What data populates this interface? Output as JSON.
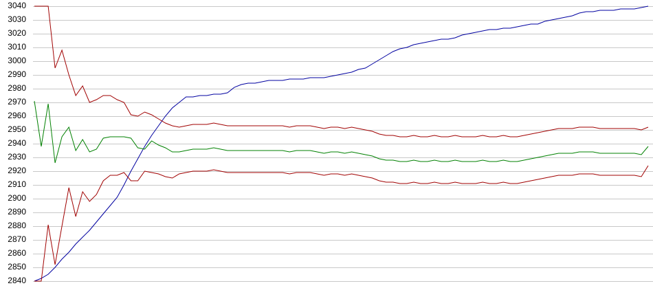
{
  "chart_data": {
    "type": "line",
    "categories": [
      null,
      null,
      null,
      null,
      null,
      null,
      null,
      null,
      null,
      null,
      null,
      null,
      null,
      null,
      null,
      null,
      null,
      null,
      null,
      null,
      null,
      null,
      null,
      null,
      null,
      null,
      null,
      null,
      null,
      null,
      null,
      null,
      null,
      null,
      null,
      null,
      null,
      null,
      null,
      null,
      null,
      null,
      null,
      null,
      null,
      null,
      null,
      null,
      null,
      null,
      null,
      null,
      null,
      null,
      null,
      null,
      null,
      null,
      null,
      null,
      null,
      null,
      null,
      null,
      null,
      null,
      null,
      null,
      null,
      null,
      null,
      null,
      null,
      null,
      null,
      null,
      null,
      null,
      null,
      null,
      null,
      null,
      null,
      null,
      null,
      null,
      null,
      null,
      null,
      null
    ],
    "ylim": [
      2840,
      3040
    ],
    "yticks": [
      2840,
      2850,
      2860,
      2870,
      2880,
      2890,
      2900,
      2910,
      2920,
      2930,
      2940,
      2950,
      2960,
      2970,
      2980,
      2990,
      3000,
      3010,
      3020,
      3030,
      3040
    ],
    "grid": true,
    "series": [
      {
        "color": "#0000a0",
        "values": [
          2840,
          2842,
          2845,
          2850,
          2856,
          2861,
          2867,
          2872,
          2877,
          2883,
          2889,
          2895,
          2901,
          2910,
          2920,
          2929,
          2938,
          2946,
          2953,
          2960,
          2966,
          2970,
          2974,
          2974,
          2975,
          2975,
          2976,
          2976,
          2977,
          2981,
          2983,
          2984,
          2984,
          2985,
          2986,
          2986,
          2986,
          2987,
          2987,
          2987,
          2988,
          2988,
          2988,
          2989,
          2990,
          2991,
          2992,
          2994,
          2995,
          2998,
          3001,
          3004,
          3007,
          3009,
          3010,
          3012,
          3013,
          3014,
          3015,
          3016,
          3016,
          3017,
          3019,
          3020,
          3021,
          3022,
          3023,
          3023,
          3024,
          3024,
          3025,
          3026,
          3027,
          3027,
          3029,
          3030,
          3031,
          3032,
          3033,
          3035,
          3036,
          3036,
          3037,
          3037,
          3037,
          3038,
          3038,
          3038,
          3039,
          3040
        ]
      },
      {
        "color": "#008000",
        "values": [
          2971,
          2938,
          2969,
          2926,
          2945,
          2952,
          2935,
          2943,
          2934,
          2936,
          2944,
          2945,
          2945,
          2945,
          2944,
          2937,
          2936,
          2942,
          2939,
          2937,
          2934,
          2934,
          2935,
          2936,
          2936,
          2936,
          2937,
          2936,
          2935,
          2935,
          2935,
          2935,
          2935,
          2935,
          2935,
          2935,
          2935,
          2934,
          2935,
          2935,
          2935,
          2934,
          2933,
          2934,
          2934,
          2933,
          2934,
          2933,
          2932,
          2931,
          2929,
          2928,
          2928,
          2927,
          2927,
          2928,
          2927,
          2927,
          2928,
          2927,
          2927,
          2928,
          2927,
          2927,
          2927,
          2928,
          2927,
          2927,
          2928,
          2927,
          2927,
          2928,
          2929,
          2930,
          2931,
          2932,
          2933,
          2933,
          2933,
          2934,
          2934,
          2934,
          2933,
          2933,
          2933,
          2933,
          2933,
          2933,
          2932,
          2938
        ]
      },
      {
        "color": "#a00000",
        "values": [
          3040,
          3040,
          3040,
          2995,
          3008,
          2990,
          2975,
          2982,
          2970,
          2972,
          2975,
          2975,
          2972,
          2970,
          2961,
          2960,
          2963,
          2961,
          2958,
          2955,
          2953,
          2952,
          2953,
          2954,
          2954,
          2954,
          2955,
          2954,
          2953,
          2953,
          2953,
          2953,
          2953,
          2953,
          2953,
          2953,
          2953,
          2952,
          2953,
          2953,
          2953,
          2952,
          2951,
          2952,
          2952,
          2951,
          2952,
          2951,
          2950,
          2949,
          2947,
          2946,
          2946,
          2945,
          2945,
          2946,
          2945,
          2945,
          2946,
          2945,
          2945,
          2946,
          2945,
          2945,
          2945,
          2946,
          2945,
          2945,
          2946,
          2945,
          2945,
          2946,
          2947,
          2948,
          2949,
          2950,
          2951,
          2951,
          2951,
          2952,
          2952,
          2952,
          2951,
          2951,
          2951,
          2951,
          2951,
          2951,
          2950,
          2952
        ]
      },
      {
        "color": "#a00000",
        "values": [
          2840,
          2840,
          2881,
          2852,
          2880,
          2908,
          2887,
          2905,
          2898,
          2903,
          2913,
          2917,
          2917,
          2919,
          2913,
          2913,
          2920,
          2919,
          2918,
          2916,
          2915,
          2918,
          2919,
          2920,
          2920,
          2920,
          2921,
          2920,
          2919,
          2919,
          2919,
          2919,
          2919,
          2919,
          2919,
          2919,
          2919,
          2918,
          2919,
          2919,
          2919,
          2918,
          2917,
          2918,
          2918,
          2917,
          2918,
          2917,
          2916,
          2915,
          2913,
          2912,
          2912,
          2911,
          2911,
          2912,
          2911,
          2911,
          2912,
          2911,
          2911,
          2912,
          2911,
          2911,
          2911,
          2912,
          2911,
          2911,
          2912,
          2911,
          2911,
          2912,
          2913,
          2914,
          2915,
          2916,
          2917,
          2917,
          2917,
          2918,
          2918,
          2918,
          2917,
          2917,
          2917,
          2917,
          2917,
          2917,
          2916,
          2924
        ]
      }
    ]
  }
}
